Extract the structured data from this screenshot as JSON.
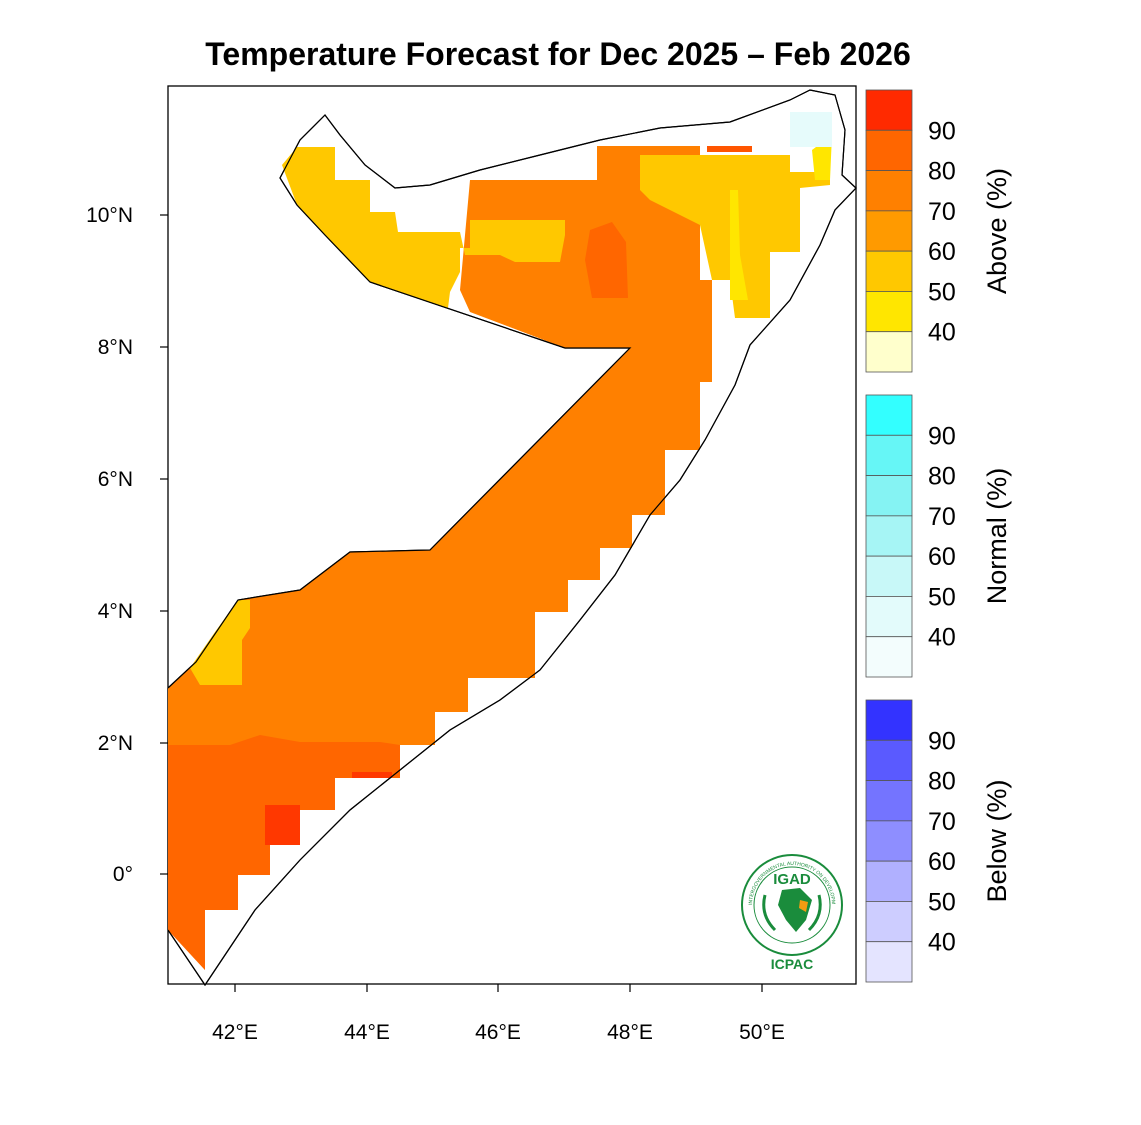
{
  "title": "Temperature Forecast for Dec 2025 – Feb 2026",
  "map": {
    "region": "Somalia",
    "x_ticks": [
      "42°E",
      "44°E",
      "46°E",
      "48°E",
      "50°E"
    ],
    "y_ticks": [
      "10°N",
      "8°N",
      "6°N",
      "4°N",
      "2°N",
      "0°"
    ]
  },
  "legends": [
    {
      "title": "Above (%)",
      "labels": [
        "90",
        "80",
        "70",
        "60",
        "50",
        "40"
      ],
      "colors": [
        "#ff2a00",
        "#ff6600",
        "#ff8000",
        "#ff9a00",
        "#ffc800",
        "#ffe600",
        "#ffffcc"
      ]
    },
    {
      "title": "Normal (%)",
      "labels": [
        "90",
        "80",
        "70",
        "60",
        "50",
        "40"
      ],
      "colors": [
        "#33ffff",
        "#66f6f6",
        "#85f3f3",
        "#a6f5f5",
        "#c8f8f8",
        "#e3fbfb",
        "#f3fdfd"
      ]
    },
    {
      "title": "Below (%)",
      "labels": [
        "90",
        "80",
        "70",
        "60",
        "50",
        "40"
      ],
      "colors": [
        "#3333ff",
        "#5a5aff",
        "#7474ff",
        "#8e8eff",
        "#b0b0ff",
        "#cdcdff",
        "#e4e4ff"
      ]
    }
  ],
  "logo": {
    "top_text": "IGAD",
    "bottom_text": "ICPAC",
    "ring_text": "INTERGOVERNMENTAL AUTHORITY ON DEVELOPMENT"
  }
}
